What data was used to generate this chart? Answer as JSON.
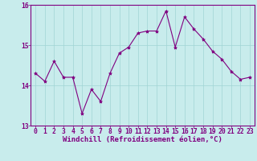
{
  "x": [
    0,
    1,
    2,
    3,
    4,
    5,
    6,
    7,
    8,
    9,
    10,
    11,
    12,
    13,
    14,
    15,
    16,
    17,
    18,
    19,
    20,
    21,
    22,
    23
  ],
  "y": [
    14.3,
    14.1,
    14.6,
    14.2,
    14.2,
    13.3,
    13.9,
    13.6,
    14.3,
    14.8,
    14.95,
    15.3,
    15.35,
    15.35,
    15.85,
    14.95,
    15.7,
    15.4,
    15.15,
    14.85,
    14.65,
    14.35,
    14.15,
    14.2
  ],
  "line_color": "#800080",
  "marker": "*",
  "marker_size": 3,
  "bg_color": "#c8ecec",
  "grid_color": "#a0d4d4",
  "xlabel": "Windchill (Refroidissement éolien,°C)",
  "xlabel_fontsize": 6.5,
  "tick_fontsize": 5.8,
  "ylim": [
    13.0,
    16.0
  ],
  "yticks": [
    13,
    14,
    15,
    16
  ],
  "xlim": [
    -0.5,
    23.5
  ],
  "xticks": [
    0,
    1,
    2,
    3,
    4,
    5,
    6,
    7,
    8,
    9,
    10,
    11,
    12,
    13,
    14,
    15,
    16,
    17,
    18,
    19,
    20,
    21,
    22,
    23
  ]
}
